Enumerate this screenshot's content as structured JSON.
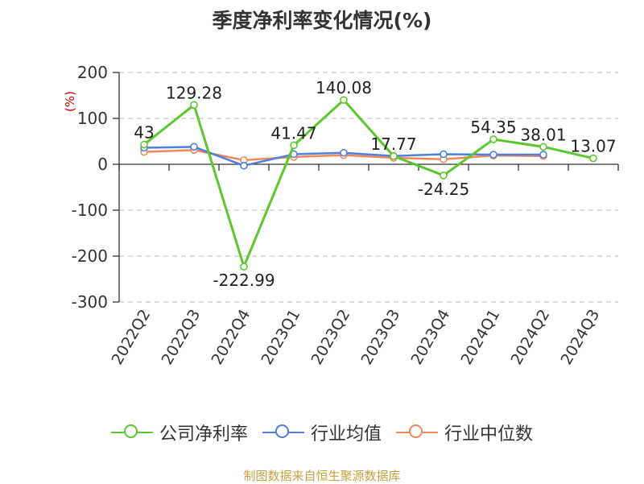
{
  "chart_data": {
    "type": "line",
    "title": "季度净利率变化情况(%)",
    "ylabel": "(%)",
    "categories": [
      "2022Q2",
      "2022Q3",
      "2022Q4",
      "2023Q1",
      "2023Q2",
      "2023Q3",
      "2023Q4",
      "2024Q1",
      "2024Q2",
      "2024Q3"
    ],
    "ylim": [
      -300,
      200
    ],
    "yticks": [
      200,
      100,
      0,
      -100,
      -200,
      -300
    ],
    "series": [
      {
        "name": "公司净利率",
        "color": "#5ac82c",
        "values": [
          43,
          129.28,
          -222.99,
          41.47,
          140.08,
          17.77,
          -24.25,
          54.35,
          38.01,
          13.07
        ],
        "labels": [
          "43",
          "129.28",
          "-222.99",
          "41.47",
          "140.08",
          "17.77",
          "-24.25",
          "54.35",
          "38.01",
          "13.07"
        ]
      },
      {
        "name": "行业均值",
        "color": "#4f7fde",
        "values": [
          36,
          38,
          -3,
          22,
          25,
          18,
          22,
          21,
          21,
          null
        ]
      },
      {
        "name": "行业中位数",
        "color": "#f0885a",
        "values": [
          27,
          31,
          9,
          16,
          20,
          14,
          11,
          19,
          18,
          null
        ]
      }
    ],
    "grid": true,
    "legend_position": "bottom"
  },
  "source": "制图数据来自恒生聚源数据库"
}
